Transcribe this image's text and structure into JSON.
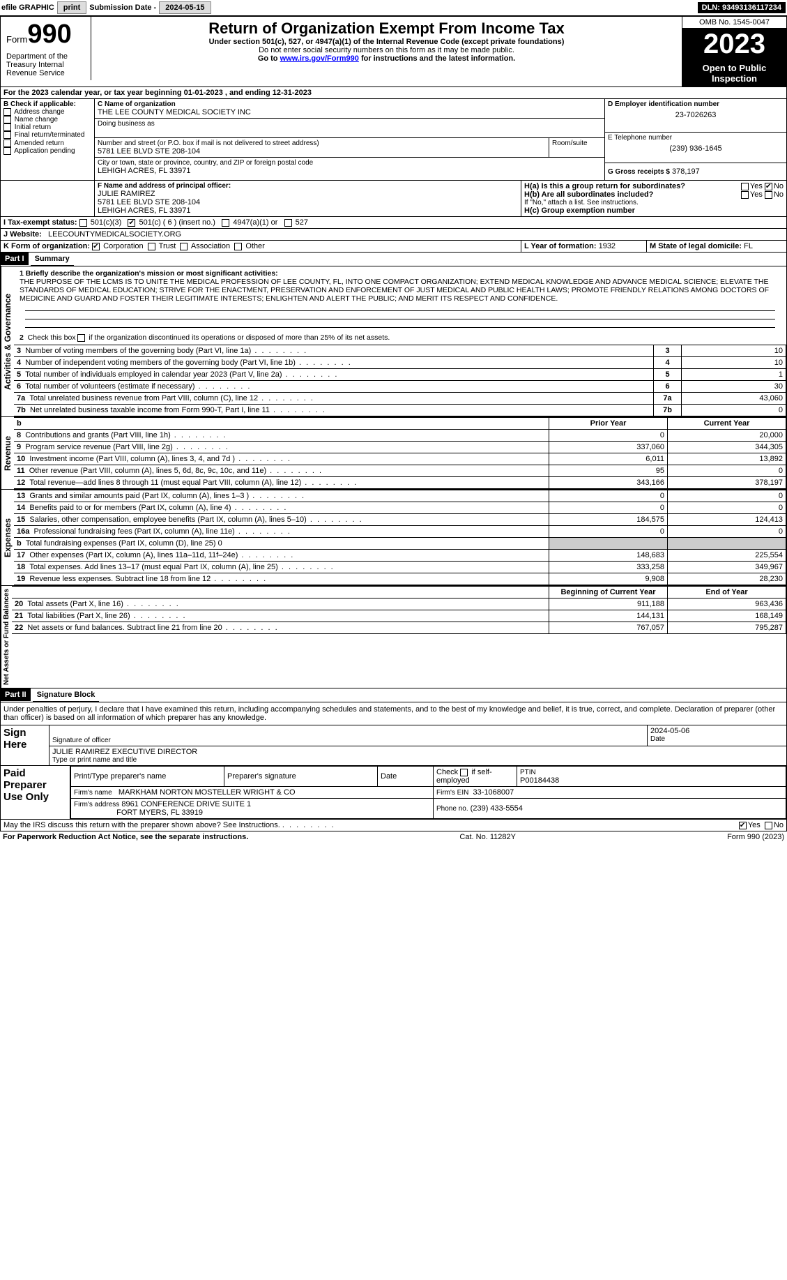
{
  "topbar": {
    "efile": "efile GRAPHIC",
    "print": "print",
    "subdate_lbl": "Submission Date -",
    "subdate": "2024-05-15",
    "dln": "DLN: 93493136117234"
  },
  "header": {
    "form": "Form",
    "num": "990",
    "dept": "Department of the Treasury Internal Revenue Service",
    "title": "Return of Organization Exempt From Income Tax",
    "sub": "Under section 501(c), 527, or 4947(a)(1) of the Internal Revenue Code (except private foundations)",
    "sub2": "Do not enter social security numbers on this form as it may be made public.",
    "sub3": "Go to www.irs.gov/Form990 for instructions and the latest information.",
    "link": "www.irs.gov/Form990",
    "omb": "OMB No. 1545-0047",
    "year": "2023",
    "open": "Open to Public Inspection"
  },
  "A": "For the 2023 calendar year, or tax year beginning 01-01-2023    , and ending 12-31-2023",
  "B": {
    "lbl": "B Check if applicable:",
    "items": [
      "Address change",
      "Name change",
      "Initial return",
      "Final return/terminated",
      "Amended return",
      "Application pending"
    ]
  },
  "C": {
    "name_lbl": "C Name of organization",
    "name": "THE LEE COUNTY MEDICAL SOCIETY INC",
    "dba_lbl": "Doing business as",
    "addr_lbl": "Number and street (or P.O. box if mail is not delivered to street address)",
    "addr": "5781 LEE BLVD STE 208-104",
    "room_lbl": "Room/suite",
    "city_lbl": "City or town, state or province, country, and ZIP or foreign postal code",
    "city": "LEHIGH ACRES, FL  33971"
  },
  "D": {
    "lbl": "D Employer identification number",
    "val": "23-7026263"
  },
  "E": {
    "lbl": "E Telephone number",
    "val": "(239) 936-1645"
  },
  "G": {
    "lbl": "G Gross receipts $",
    "val": "378,197"
  },
  "F": {
    "lbl": "F  Name and address of principal officer:",
    "name": "JULIE RAMIREZ",
    "addr1": "5781 LEE BLVD STE 208-104",
    "addr2": "LEHIGH ACRES, FL  33971"
  },
  "H": {
    "a": "H(a)  Is this a group return for subordinates?",
    "b": "H(b)  Are all subordinates included?",
    "b2": "If \"No,\" attach a list. See instructions.",
    "c": "H(c)  Group exemption number",
    "yes": "Yes",
    "no": "No"
  },
  "I": {
    "lbl": "I    Tax-exempt status:",
    "c3": "501(c)(3)",
    "c": "501(c) ( 6 ) (insert no.)",
    "a1": "4947(a)(1) or",
    "527": "527"
  },
  "J": {
    "lbl": "J    Website:",
    "val": "LEECOUNTYMEDICALSOCIETY.ORG"
  },
  "K": {
    "lbl": "K Form of organization:",
    "corp": "Corporation",
    "trust": "Trust",
    "assoc": "Association",
    "other": "Other"
  },
  "L": {
    "lbl": "L Year of formation:",
    "val": "1932"
  },
  "M": {
    "lbl": "M State of legal domicile:",
    "val": "FL"
  },
  "part1": {
    "num": "Part I",
    "title": "Summary"
  },
  "mission_lbl": "1  Briefly describe the organization's mission or most significant activities:",
  "mission": "THE PURPOSE OF THE LCMS IS TO UNITE THE MEDICAL PROFESSION OF LEE COUNTY, FL, INTO ONE COMPACT ORGANIZATION; EXTEND MEDICAL KNOWLEDGE AND ADVANCE MEDICAL SCIENCE; ELEVATE THE STANDARDS OF MEDICAL EDUCATION; STRIVE FOR THE ENACTMENT, PRESERVATION AND ENFORCEMENT OF JUST MEDICAL AND PUBLIC HEALTH LAWS; PROMOTE FRIENDLY RELATIONS AMONG DOCTORS OF MEDICINE AND GUARD AND FOSTER THEIR LEGITIMATE INTERESTS; ENLIGHTEN AND ALERT THE PUBLIC; AND MERIT ITS RESPECT AND CONFIDENCE.",
  "line2": "2  Check this box   if the organization discontinued its operations or disposed of more than 25% of its net assets.",
  "gov_rows": [
    {
      "n": "3",
      "t": "Number of voting members of the governing body (Part VI, line 1a)",
      "v": "10"
    },
    {
      "n": "4",
      "t": "Number of independent voting members of the governing body (Part VI, line 1b)",
      "v": "10"
    },
    {
      "n": "5",
      "t": "Total number of individuals employed in calendar year 2023 (Part V, line 2a)",
      "v": "1"
    },
    {
      "n": "6",
      "t": "Total number of volunteers (estimate if necessary)",
      "v": "30"
    },
    {
      "n": "7a",
      "t": "Total unrelated business revenue from Part VIII, column (C), line 12",
      "v": "43,060"
    },
    {
      "n": "7b",
      "t": "Net unrelated business taxable income from Form 990-T, Part I, line 11",
      "v": "0"
    }
  ],
  "rev_hdr": {
    "b": "b",
    "prior": "Prior Year",
    "curr": "Current Year"
  },
  "rev_rows": [
    {
      "n": "8",
      "t": "Contributions and grants (Part VIII, line 1h)",
      "p": "0",
      "c": "20,000"
    },
    {
      "n": "9",
      "t": "Program service revenue (Part VIII, line 2g)",
      "p": "337,060",
      "c": "344,305"
    },
    {
      "n": "10",
      "t": "Investment income (Part VIII, column (A), lines 3, 4, and 7d )",
      "p": "6,011",
      "c": "13,892"
    },
    {
      "n": "11",
      "t": "Other revenue (Part VIII, column (A), lines 5, 6d, 8c, 9c, 10c, and 11e)",
      "p": "95",
      "c": "0"
    },
    {
      "n": "12",
      "t": "Total revenue—add lines 8 through 11 (must equal Part VIII, column (A), line 12)",
      "p": "343,166",
      "c": "378,197"
    }
  ],
  "exp_rows": [
    {
      "n": "13",
      "t": "Grants and similar amounts paid (Part IX, column (A), lines 1–3 )",
      "p": "0",
      "c": "0"
    },
    {
      "n": "14",
      "t": "Benefits paid to or for members (Part IX, column (A), line 4)",
      "p": "0",
      "c": "0"
    },
    {
      "n": "15",
      "t": "Salaries, other compensation, employee benefits (Part IX, column (A), lines 5–10)",
      "p": "184,575",
      "c": "124,413"
    },
    {
      "n": "16a",
      "t": "Professional fundraising fees (Part IX, column (A), line 11e)",
      "p": "0",
      "c": "0"
    },
    {
      "n": "b",
      "t": "Total fundraising expenses (Part IX, column (D), line 25) 0",
      "p": "",
      "c": ""
    },
    {
      "n": "17",
      "t": "Other expenses (Part IX, column (A), lines 11a–11d, 11f–24e)",
      "p": "148,683",
      "c": "225,554"
    },
    {
      "n": "18",
      "t": "Total expenses. Add lines 13–17 (must equal Part IX, column (A), line 25)",
      "p": "333,258",
      "c": "349,967"
    },
    {
      "n": "19",
      "t": "Revenue less expenses. Subtract line 18 from line 12",
      "p": "9,908",
      "c": "28,230"
    }
  ],
  "na_hdr": {
    "beg": "Beginning of Current Year",
    "end": "End of Year"
  },
  "na_rows": [
    {
      "n": "20",
      "t": "Total assets (Part X, line 16)",
      "p": "911,188",
      "c": "963,436"
    },
    {
      "n": "21",
      "t": "Total liabilities (Part X, line 26)",
      "p": "144,131",
      "c": "168,149"
    },
    {
      "n": "22",
      "t": "Net assets or fund balances. Subtract line 21 from line 20",
      "p": "767,057",
      "c": "795,287"
    }
  ],
  "vert": {
    "gov": "Activities & Governance",
    "rev": "Revenue",
    "exp": "Expenses",
    "na": "Net Assets or Fund Balances"
  },
  "part2": {
    "num": "Part II",
    "title": "Signature Block"
  },
  "sig_decl": "Under penalties of perjury, I declare that I have examined this return, including accompanying schedules and statements, and to the best of my knowledge and belief, it is true, correct, and complete. Declaration of preparer (other than officer) is based on all information of which preparer has any knowledge.",
  "sign_here": "Sign Here",
  "sig_date": "2024-05-06",
  "sig_officer_lbl": "Signature of officer",
  "sig_date_lbl": "Date",
  "sig_name": "JULIE RAMIREZ  EXECUTIVE DIRECTOR",
  "sig_name_lbl": "Type or print name and title",
  "paid": {
    "lbl": "Paid Preparer Use Only",
    "h1": "Print/Type preparer's name",
    "h2": "Preparer's signature",
    "h3": "Date",
    "h4": "Check   if self-employed",
    "h5": "PTIN",
    "ptin": "P00184438",
    "firm_lbl": "Firm's name",
    "firm": "MARKHAM NORTON MOSTELLER WRIGHT & CO",
    "ein_lbl": "Firm's EIN",
    "ein": "33-1068007",
    "addr_lbl": "Firm's address",
    "addr": "8961 CONFERENCE DRIVE SUITE 1",
    "addr2": "FORT MYERS, FL  33919",
    "phone_lbl": "Phone no.",
    "phone": "(239) 433-5554"
  },
  "irs_q": "May the IRS discuss this return with the preparer shown above? See Instructions.",
  "footer": {
    "l": "For Paperwork Reduction Act Notice, see the separate instructions.",
    "m": "Cat. No. 11282Y",
    "r": "Form 990 (2023)"
  }
}
